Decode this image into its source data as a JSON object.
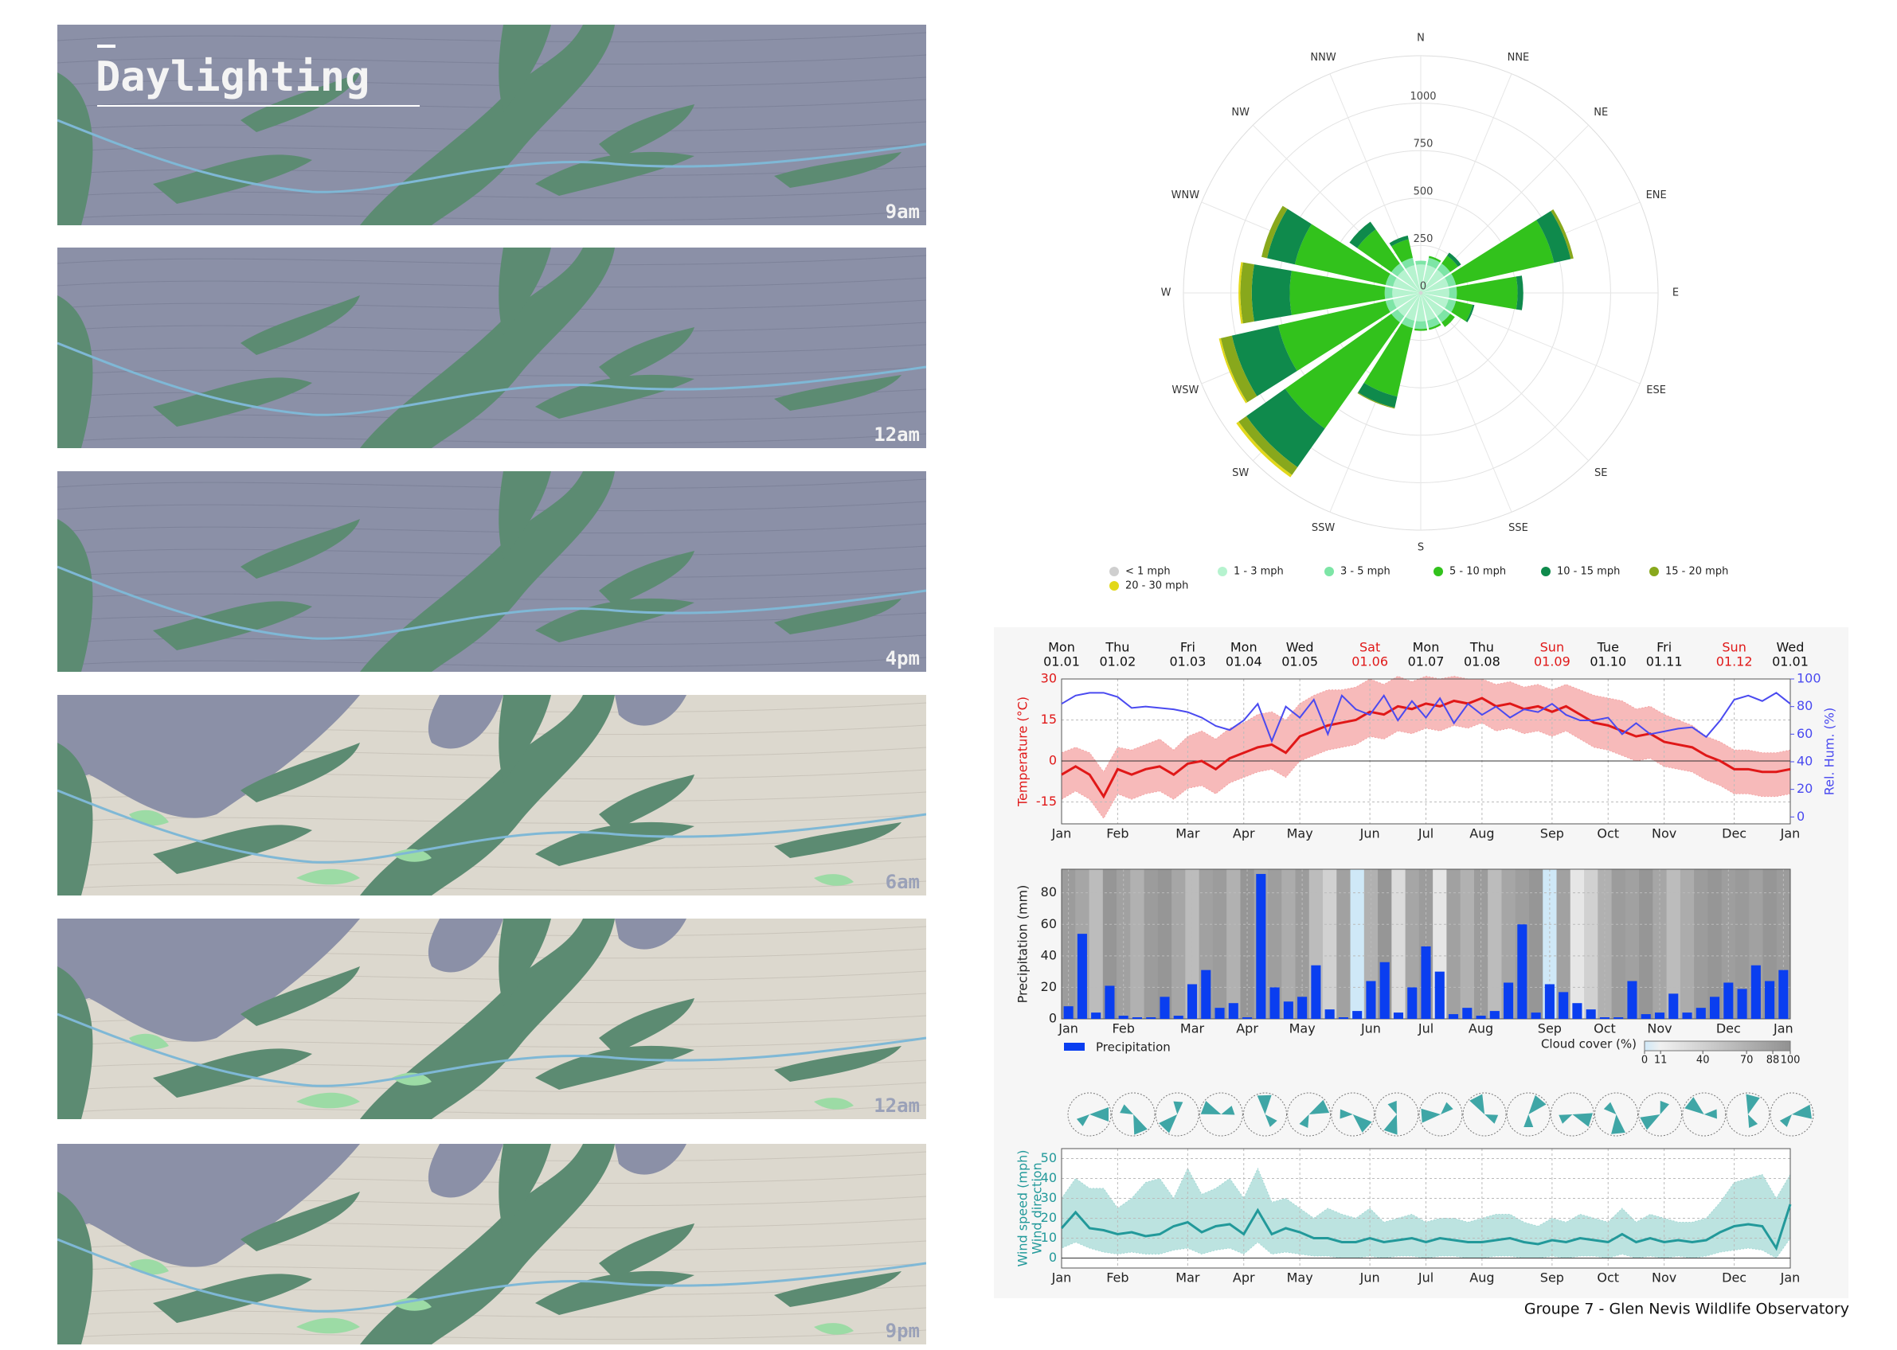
{
  "header": {
    "title": "Daylighting"
  },
  "panels": [
    {
      "label": "9am",
      "tone": "shade"
    },
    {
      "label": "12am",
      "tone": "shade"
    },
    {
      "label": "4pm",
      "tone": "shade"
    },
    {
      "label": "6am",
      "tone": "lit"
    },
    {
      "label": "12am",
      "tone": "lit"
    },
    {
      "label": "9pm",
      "tone": "lit"
    }
  ],
  "footer": "Groupe 7 - Glen Nevis Wildlife Observatory",
  "chart_data": [
    {
      "type": "rose",
      "directions": [
        "N",
        "NNE",
        "NE",
        "ENE",
        "E",
        "ESE",
        "SE",
        "SSE",
        "S",
        "SSW",
        "SW",
        "WSW",
        "W",
        "WNW",
        "NW",
        "NNW"
      ],
      "rlim": [
        0,
        1250
      ],
      "rticks": [
        0,
        250,
        500,
        750,
        1000
      ],
      "series": [
        {
          "name": "< 1 mph",
          "color": "#cfcfcf",
          "values": [
            10,
            10,
            10,
            10,
            10,
            10,
            10,
            10,
            10,
            10,
            10,
            10,
            10,
            10,
            10,
            10
          ]
        },
        {
          "name": "1 - 3 mph",
          "color": "#b6f3cf",
          "values": [
            140,
            140,
            140,
            140,
            140,
            140,
            140,
            140,
            140,
            140,
            140,
            140,
            140,
            140,
            140,
            140
          ]
        },
        {
          "name": "3 - 5 mph",
          "color": "#7de5a6",
          "values": [
            20,
            40,
            40,
            40,
            40,
            40,
            40,
            40,
            40,
            40,
            40,
            40,
            40,
            40,
            40,
            40
          ]
        },
        {
          "name": "5 - 10 mph",
          "color": "#32c21c",
          "values": [
            0,
            10,
            50,
            530,
            320,
            90,
            30,
            10,
            10,
            370,
            685,
            580,
            500,
            490,
            220,
            100
          ]
        },
        {
          "name": "10 - 15 mph",
          "color": "#0f8a4c",
          "values": [
            0,
            0,
            20,
            90,
            30,
            10,
            0,
            0,
            0,
            60,
            250,
            250,
            200,
            150,
            50,
            20
          ]
        },
        {
          "name": "15 - 20 mph",
          "color": "#88a81c",
          "values": [
            0,
            0,
            0,
            15,
            0,
            0,
            0,
            0,
            0,
            5,
            50,
            60,
            60,
            30,
            0,
            0
          ]
        },
        {
          "name": "20 - 30 mph",
          "color": "#e2d81a",
          "values": [
            0,
            0,
            0,
            0,
            0,
            0,
            0,
            0,
            0,
            0,
            15,
            10,
            10,
            0,
            0,
            0
          ]
        }
      ]
    },
    {
      "type": "line",
      "day_labels": [
        {
          "day": "Mon",
          "date": "01.01",
          "color": "#111111"
        },
        {
          "day": "Thu",
          "date": "01.02",
          "color": "#111111"
        },
        {
          "day": "Fri",
          "date": "01.03",
          "color": "#111111"
        },
        {
          "day": "Mon",
          "date": "01.04",
          "color": "#111111"
        },
        {
          "day": "Wed",
          "date": "01.05",
          "color": "#111111"
        },
        {
          "day": "Sat",
          "date": "01.06",
          "color": "#e01818"
        },
        {
          "day": "Mon",
          "date": "01.07",
          "color": "#111111"
        },
        {
          "day": "Thu",
          "date": "01.08",
          "color": "#111111"
        },
        {
          "day": "Sun",
          "date": "01.09",
          "color": "#e01818"
        },
        {
          "day": "Tue",
          "date": "01.10",
          "color": "#111111"
        },
        {
          "day": "Fri",
          "date": "01.11",
          "color": "#111111"
        },
        {
          "day": "Sun",
          "date": "01.12",
          "color": "#e01818"
        },
        {
          "day": "Wed",
          "date": "01.01",
          "color": "#111111"
        }
      ],
      "categories": [
        "Jan",
        null,
        null,
        null,
        "Feb",
        null,
        null,
        null,
        null,
        "Mar",
        null,
        null,
        null,
        "Apr",
        null,
        null,
        null,
        "May",
        null,
        null,
        null,
        null,
        "Jun",
        null,
        null,
        null,
        "Jul",
        null,
        null,
        null,
        "Aug",
        null,
        null,
        null,
        null,
        "Sep",
        null,
        null,
        null,
        "Oct",
        null,
        null,
        null,
        "Nov",
        null,
        null,
        null,
        null,
        "Dec",
        null,
        null,
        null,
        "Jan"
      ],
      "ylabel": "Temperature (°C)",
      "y2label": "Rel. Hum. (%)",
      "ylim": [
        -23,
        30
      ],
      "yticks": [
        -15,
        0,
        15,
        30
      ],
      "y2lim": [
        -5,
        100
      ],
      "y2ticks": [
        0,
        20,
        40,
        60,
        80,
        100
      ],
      "grid": true,
      "band": {
        "color": "#f4a3a3",
        "upper": [
          3,
          5,
          3,
          -4,
          5,
          4,
          6,
          8,
          4,
          9,
          11,
          8,
          12,
          14,
          17,
          18,
          15,
          21,
          24,
          26,
          26,
          27,
          30,
          28,
          31,
          29,
          31,
          30,
          31,
          30,
          30,
          28,
          29,
          27,
          28,
          26,
          28,
          26,
          24,
          23,
          22,
          19,
          20,
          17,
          15,
          13,
          9,
          7,
          4,
          4,
          3,
          3,
          4
        ],
        "lower": [
          -14,
          -11,
          -14,
          -21,
          -12,
          -14,
          -12,
          -11,
          -14,
          -10,
          -9,
          -12,
          -8,
          -6,
          -4,
          -3,
          -6,
          0,
          2,
          4,
          5,
          6,
          9,
          8,
          11,
          10,
          12,
          11,
          13,
          12,
          14,
          11,
          12,
          10,
          11,
          9,
          11,
          8,
          5,
          4,
          2,
          0,
          1,
          -2,
          -3,
          -4,
          -7,
          -9,
          -12,
          -12,
          -13,
          -13,
          -12
        ]
      },
      "series": [
        {
          "color": "#e01818",
          "values": [
            -5,
            -2,
            -5,
            -13,
            -3,
            -5,
            -3,
            -2,
            -5,
            -1,
            0,
            -3,
            1,
            3,
            5,
            6,
            3,
            9,
            11,
            13,
            14,
            15,
            18,
            17,
            20,
            19,
            21,
            20,
            22,
            21,
            23,
            20,
            21,
            19,
            20,
            18,
            20,
            17,
            14,
            13,
            11,
            9,
            10,
            7,
            6,
            5,
            2,
            0,
            -3,
            -3,
            -4,
            -4,
            -3
          ]
        },
        {
          "color": "#4a4af0",
          "axis": "y2",
          "values": [
            82,
            88,
            90,
            90,
            87,
            79,
            80,
            79,
            78,
            76,
            72,
            66,
            63,
            70,
            82,
            55,
            80,
            72,
            85,
            60,
            88,
            78,
            74,
            88,
            70,
            84,
            72,
            86,
            68,
            82,
            74,
            80,
            72,
            78,
            76,
            82,
            74,
            70,
            70,
            72,
            60,
            68,
            60,
            62,
            64,
            65,
            58,
            70,
            85,
            88,
            84,
            90,
            82
          ]
        }
      ]
    },
    {
      "type": "bar",
      "categories": [
        "Jan",
        null,
        null,
        null,
        "Feb",
        null,
        null,
        null,
        null,
        "Mar",
        null,
        null,
        null,
        "Apr",
        null,
        null,
        null,
        "May",
        null,
        null,
        null,
        null,
        "Jun",
        null,
        null,
        null,
        "Jul",
        null,
        null,
        null,
        "Aug",
        null,
        null,
        null,
        null,
        "Sep",
        null,
        null,
        null,
        "Oct",
        null,
        null,
        null,
        "Nov",
        null,
        null,
        null,
        null,
        "Dec",
        null,
        null,
        null,
        "Jan"
      ],
      "ylabel": "Precipitation (mm)",
      "ylim": [
        0,
        95
      ],
      "yticks": [
        0,
        20,
        40,
        60,
        80
      ],
      "grid": true,
      "series": [
        {
          "name": "Precipitation",
          "color": "#0a3ef0",
          "values": [
            8,
            54,
            4,
            21,
            2,
            1,
            1,
            14,
            2,
            22,
            31,
            7,
            10,
            1,
            92,
            20,
            11,
            14,
            34,
            6,
            1,
            5,
            24,
            36,
            4,
            20,
            46,
            30,
            3,
            7,
            2,
            5,
            23,
            60,
            4,
            22,
            17,
            10,
            6,
            1,
            1,
            24,
            3,
            4,
            16,
            4,
            7,
            14,
            23,
            19,
            34,
            24,
            31
          ]
        }
      ],
      "cloud_cover": {
        "name": "Cloud cover (%)",
        "ticks": [
          0,
          11,
          40,
          70,
          88,
          100
        ],
        "values": [
          90,
          80,
          60,
          95,
          85,
          70,
          90,
          95,
          80,
          60,
          85,
          90,
          70,
          95,
          80,
          88,
          75,
          90,
          60,
          40,
          85,
          10,
          70,
          95,
          30,
          80,
          90,
          20,
          85,
          70,
          90,
          60,
          80,
          88,
          95,
          10,
          85,
          20,
          40,
          70,
          90,
          85,
          95,
          80,
          60,
          75,
          90,
          95,
          88,
          92,
          85,
          95,
          90
        ]
      }
    },
    {
      "type": "line",
      "categories": [
        "Jan",
        null,
        null,
        null,
        "Feb",
        null,
        null,
        null,
        null,
        "Mar",
        null,
        null,
        null,
        "Apr",
        null,
        null,
        null,
        "May",
        null,
        null,
        null,
        null,
        "Jun",
        null,
        null,
        null,
        "Jul",
        null,
        null,
        null,
        "Aug",
        null,
        null,
        null,
        null,
        "Sep",
        null,
        null,
        null,
        "Oct",
        null,
        null,
        null,
        "Nov",
        null,
        null,
        null,
        null,
        "Dec",
        null,
        null,
        null,
        "Jan"
      ],
      "ylabel": "Wind speed (mph)",
      "ylabel2": "Wind direction",
      "ylim": [
        -5,
        55
      ],
      "yticks": [
        0,
        10,
        20,
        30,
        40,
        50
      ],
      "grid": true,
      "band": {
        "color": "#a6d9d6",
        "upper": [
          30,
          40,
          35,
          35,
          25,
          30,
          38,
          40,
          30,
          45,
          32,
          35,
          40,
          30,
          45,
          28,
          30,
          25,
          20,
          25,
          22,
          20,
          25,
          18,
          20,
          22,
          18,
          20,
          20,
          18,
          20,
          22,
          22,
          18,
          16,
          20,
          18,
          22,
          20,
          18,
          25,
          18,
          22,
          20,
          18,
          18,
          20,
          28,
          38,
          40,
          42,
          30,
          42
        ],
        "lower": [
          5,
          8,
          5,
          3,
          2,
          3,
          2,
          2,
          4,
          5,
          2,
          4,
          5,
          2,
          8,
          2,
          3,
          2,
          1,
          1,
          0,
          0,
          1,
          0,
          1,
          1,
          0,
          1,
          1,
          0,
          0,
          1,
          1,
          0,
          0,
          1,
          0,
          1,
          1,
          0,
          2,
          0,
          1,
          0,
          1,
          0,
          1,
          3,
          4,
          5,
          4,
          0,
          10
        ]
      },
      "series": [
        {
          "color": "#22999a",
          "values": [
            15,
            23,
            15,
            14,
            12,
            13,
            11,
            12,
            16,
            18,
            13,
            16,
            17,
            12,
            24,
            12,
            15,
            13,
            10,
            10,
            8,
            8,
            10,
            8,
            9,
            10,
            8,
            10,
            9,
            8,
            8,
            9,
            10,
            8,
            7,
            9,
            8,
            10,
            9,
            8,
            12,
            8,
            10,
            8,
            9,
            8,
            9,
            13,
            16,
            17,
            16,
            5,
            27
          ]
        }
      ]
    }
  ]
}
